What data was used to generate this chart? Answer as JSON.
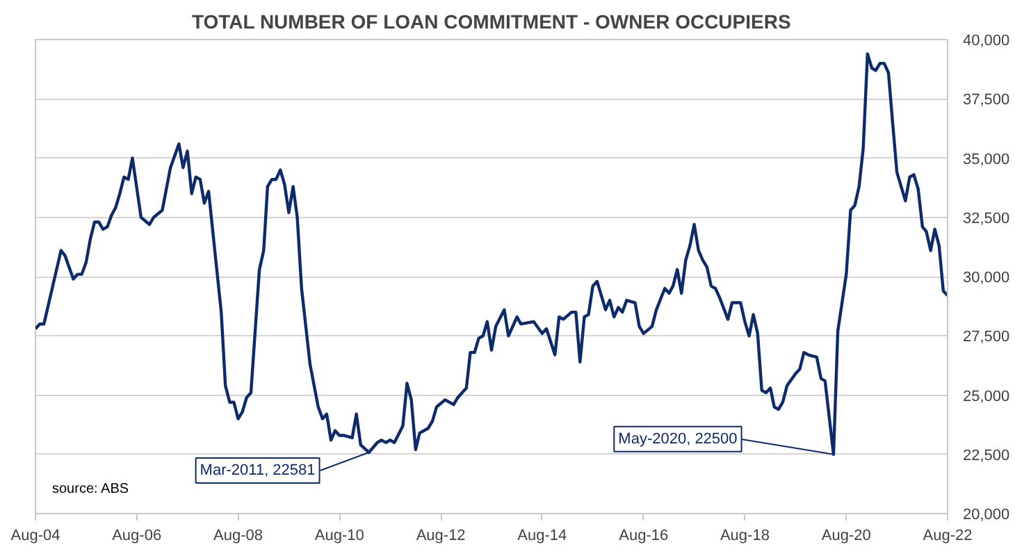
{
  "chart_data": {
    "type": "line",
    "title": "TOTAL NUMBER OF LOAN COMMITMENT - OWNER OCCUPIERS",
    "x": [
      "2004-08",
      "2004-09",
      "2004-10",
      "2005-02",
      "2005-03",
      "2005-05",
      "2005-06",
      "2005-07",
      "2005-08",
      "2005-09",
      "2005-10",
      "2005-11",
      "2005-12",
      "2006-01",
      "2006-02",
      "2006-03",
      "2006-04",
      "2006-05",
      "2006-06",
      "2006-07",
      "2006-09",
      "2006-11",
      "2006-12",
      "2007-02",
      "2007-04",
      "2007-06",
      "2007-07",
      "2007-08",
      "2007-09",
      "2007-10",
      "2007-11",
      "2007-12",
      "2008-01",
      "2008-04",
      "2008-05",
      "2008-06",
      "2008-07",
      "2008-08",
      "2008-09",
      "2008-10",
      "2008-11",
      "2009-01",
      "2009-02",
      "2009-03",
      "2009-04",
      "2009-05",
      "2009-06",
      "2009-07",
      "2009-08",
      "2009-09",
      "2009-10",
      "2009-11",
      "2010-01",
      "2010-03",
      "2010-04",
      "2010-05",
      "2010-06",
      "2010-07",
      "2010-08",
      "2010-09",
      "2010-11",
      "2010-12",
      "2011-01",
      "2011-03",
      "2011-05",
      "2011-06",
      "2011-07",
      "2011-08",
      "2011-09",
      "2011-11",
      "2011-12",
      "2012-01",
      "2012-02",
      "2012-03",
      "2012-05",
      "2012-06",
      "2012-07",
      "2012-09",
      "2012-11",
      "2012-12",
      "2013-02",
      "2013-03",
      "2013-04",
      "2013-05",
      "2013-06",
      "2013-07",
      "2013-08",
      "2013-09",
      "2013-11",
      "2013-12",
      "2014-02",
      "2014-03",
      "2014-06",
      "2014-08",
      "2014-09",
      "2014-11",
      "2014-12",
      "2015-01",
      "2015-03",
      "2015-04",
      "2015-05",
      "2015-06",
      "2015-07",
      "2015-08",
      "2015-09",
      "2015-11",
      "2015-12",
      "2016-01",
      "2016-02",
      "2016-03",
      "2016-04",
      "2016-06",
      "2016-07",
      "2016-08",
      "2016-10",
      "2016-11",
      "2017-01",
      "2017-02",
      "2017-03",
      "2017-04",
      "2017-05",
      "2017-06",
      "2017-07",
      "2017-08",
      "2017-09",
      "2017-10",
      "2017-11",
      "2017-12",
      "2018-01",
      "2018-02",
      "2018-04",
      "2018-05",
      "2018-07",
      "2018-08",
      "2018-09",
      "2018-10",
      "2018-11",
      "2018-12",
      "2019-01",
      "2019-02",
      "2019-03",
      "2019-04",
      "2019-05",
      "2019-06",
      "2019-08",
      "2019-09",
      "2019-10",
      "2019-11",
      "2020-01",
      "2020-02",
      "2020-03",
      "2020-05",
      "2020-06",
      "2020-08",
      "2020-09",
      "2020-10",
      "2020-11",
      "2020-12",
      "2021-01",
      "2021-02",
      "2021-03",
      "2021-04",
      "2021-05",
      "2021-06",
      "2021-07",
      "2021-08",
      "2021-10",
      "2021-11",
      "2021-12",
      "2022-01",
      "2022-02",
      "2022-03",
      "2022-04",
      "2022-05",
      "2022-06",
      "2022-07",
      "2022-08"
    ],
    "series": [
      {
        "color": "#0d2a6b",
        "values": [
          27800,
          28000,
          28000,
          31100,
          30900,
          29900,
          30100,
          30100,
          30600,
          31600,
          32300,
          32300,
          32000,
          32100,
          32600,
          32900,
          33500,
          34200,
          34100,
          35000,
          32500,
          32200,
          32500,
          32800,
          34600,
          35600,
          34600,
          35300,
          33500,
          34200,
          34100,
          33100,
          33600,
          28500,
          25400,
          24700,
          24700,
          24000,
          24300,
          24900,
          25100,
          30300,
          31100,
          33800,
          34100,
          34100,
          34500,
          33900,
          32700,
          33800,
          32500,
          29500,
          26300,
          24500,
          24000,
          24200,
          23100,
          23500,
          23300,
          23300,
          23200,
          24200,
          22900,
          22581,
          23000,
          23100,
          23000,
          23100,
          23000,
          23700,
          25500,
          24800,
          22700,
          23400,
          23600,
          23900,
          24500,
          24800,
          24600,
          24900,
          25300,
          26800,
          26800,
          27400,
          27500,
          28100,
          26900,
          27900,
          28600,
          27500,
          28300,
          28000,
          28100,
          27600,
          27800,
          26700,
          28300,
          28200,
          28500,
          28500,
          26400,
          28300,
          28400,
          29600,
          29800,
          28600,
          29000,
          28300,
          28700,
          28500,
          29000,
          28900,
          27900,
          27600,
          27900,
          28600,
          29500,
          29300,
          29600,
          30300,
          29300,
          30700,
          31300,
          32200,
          31100,
          30700,
          30400,
          29600,
          29500,
          29100,
          28200,
          28900,
          28900,
          28100,
          27500,
          28400,
          27600,
          25200,
          25100,
          25300,
          24500,
          24400,
          24700,
          25400,
          25900,
          26100,
          26800,
          26700,
          26600,
          25700,
          25600,
          22500,
          27700,
          30100,
          32800,
          33000,
          33800,
          35400,
          39400,
          38800,
          38700,
          39000,
          39000,
          38600,
          36500,
          34400,
          33200,
          34200,
          34300,
          33700,
          32100,
          31900,
          31100,
          32000,
          31300,
          29400,
          29200
        ]
      }
    ],
    "xlim": [
      "2004-08",
      "2022-08"
    ],
    "xticks": [
      {
        "value": "2004-08",
        "label": "Aug-04"
      },
      {
        "value": "2006-08",
        "label": "Aug-06"
      },
      {
        "value": "2008-08",
        "label": "Aug-08"
      },
      {
        "value": "2010-08",
        "label": "Aug-10"
      },
      {
        "value": "2012-08",
        "label": "Aug-12"
      },
      {
        "value": "2014-08",
        "label": "Aug-14"
      },
      {
        "value": "2016-08",
        "label": "Aug-16"
      },
      {
        "value": "2018-08",
        "label": "Aug-18"
      },
      {
        "value": "2020-08",
        "label": "Aug-20"
      },
      {
        "value": "2022-08",
        "label": "Aug-22"
      }
    ],
    "ylim": [
      20000,
      40000
    ],
    "yticks": [
      {
        "value": 20000,
        "label": "20,000"
      },
      {
        "value": 22500,
        "label": "22,500"
      },
      {
        "value": 25000,
        "label": "25,000"
      },
      {
        "value": 27500,
        "label": "27,500"
      },
      {
        "value": 30000,
        "label": "30,000"
      },
      {
        "value": 32500,
        "label": "32,500"
      },
      {
        "value": 35000,
        "label": "35,000"
      },
      {
        "value": 37500,
        "label": "37,500"
      },
      {
        "value": 40000,
        "label": "40,000"
      }
    ],
    "grid": "y",
    "marker": "none",
    "line_style": "solid",
    "annotations": [
      {
        "text": "Mar-2011, 22581",
        "x": "2011-03",
        "y": 22581
      },
      {
        "text": "May-2020, 22500",
        "x": "2020-05",
        "y": 22500
      },
      "source: ABS"
    ]
  }
}
